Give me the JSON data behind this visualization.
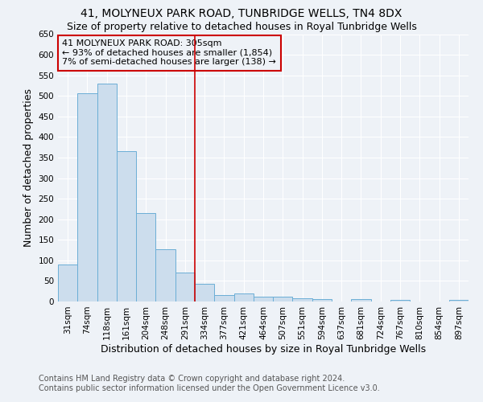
{
  "title": "41, MOLYNEUX PARK ROAD, TUNBRIDGE WELLS, TN4 8DX",
  "subtitle": "Size of property relative to detached houses in Royal Tunbridge Wells",
  "xlabel": "Distribution of detached houses by size in Royal Tunbridge Wells",
  "ylabel": "Number of detached properties",
  "footer_line1": "Contains HM Land Registry data © Crown copyright and database right 2024.",
  "footer_line2": "Contains public sector information licensed under the Open Government Licence v3.0.",
  "categories": [
    "31sqm",
    "74sqm",
    "118sqm",
    "161sqm",
    "204sqm",
    "248sqm",
    "291sqm",
    "334sqm",
    "377sqm",
    "421sqm",
    "464sqm",
    "507sqm",
    "551sqm",
    "594sqm",
    "637sqm",
    "681sqm",
    "724sqm",
    "767sqm",
    "810sqm",
    "854sqm",
    "897sqm"
  ],
  "values": [
    90,
    507,
    530,
    365,
    215,
    127,
    70,
    43,
    16,
    19,
    11,
    11,
    8,
    5,
    0,
    5,
    0,
    4,
    0,
    0,
    4
  ],
  "bar_color": "#ccdded",
  "bar_edge_color": "#6baed6",
  "vline_color": "#cc0000",
  "vline_index": 7,
  "annotation_text": "41 MOLYNEUX PARK ROAD: 305sqm\n← 93% of detached houses are smaller (1,854)\n7% of semi-detached houses are larger (138) →",
  "annotation_box_edge_color": "#cc0000",
  "ylim": [
    0,
    650
  ],
  "yticks": [
    0,
    50,
    100,
    150,
    200,
    250,
    300,
    350,
    400,
    450,
    500,
    550,
    600,
    650
  ],
  "bg_color": "#eef2f7",
  "grid_color": "#ffffff",
  "title_fontsize": 10,
  "subtitle_fontsize": 9,
  "ylabel_fontsize": 9,
  "xlabel_fontsize": 9,
  "tick_fontsize": 7.5,
  "footer_fontsize": 7,
  "annotation_fontsize": 8
}
